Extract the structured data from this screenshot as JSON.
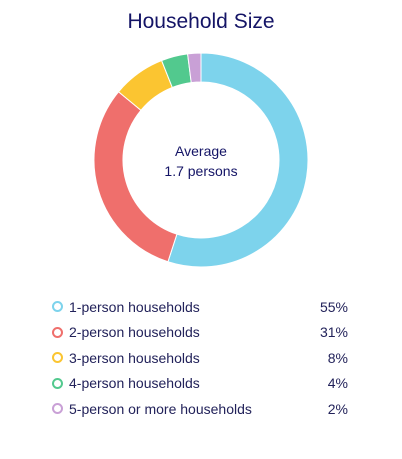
{
  "chart_data": {
    "type": "pie",
    "variant": "donut",
    "title": "Household Size",
    "center_label": {
      "line1": "Average",
      "line2": "1.7 persons"
    },
    "categories": [
      "1-person households",
      "2-person households",
      "3-person households",
      "4-person households",
      "5-person or more households"
    ],
    "values": [
      55,
      31,
      8,
      4,
      2
    ],
    "value_labels": [
      "55%",
      "31%",
      "8%",
      "4%",
      "2%"
    ],
    "colors": [
      "#7dd3ec",
      "#ef6f6c",
      "#fbc531",
      "#52c98e",
      "#c9a0d6"
    ],
    "legend_position": "bottom"
  }
}
